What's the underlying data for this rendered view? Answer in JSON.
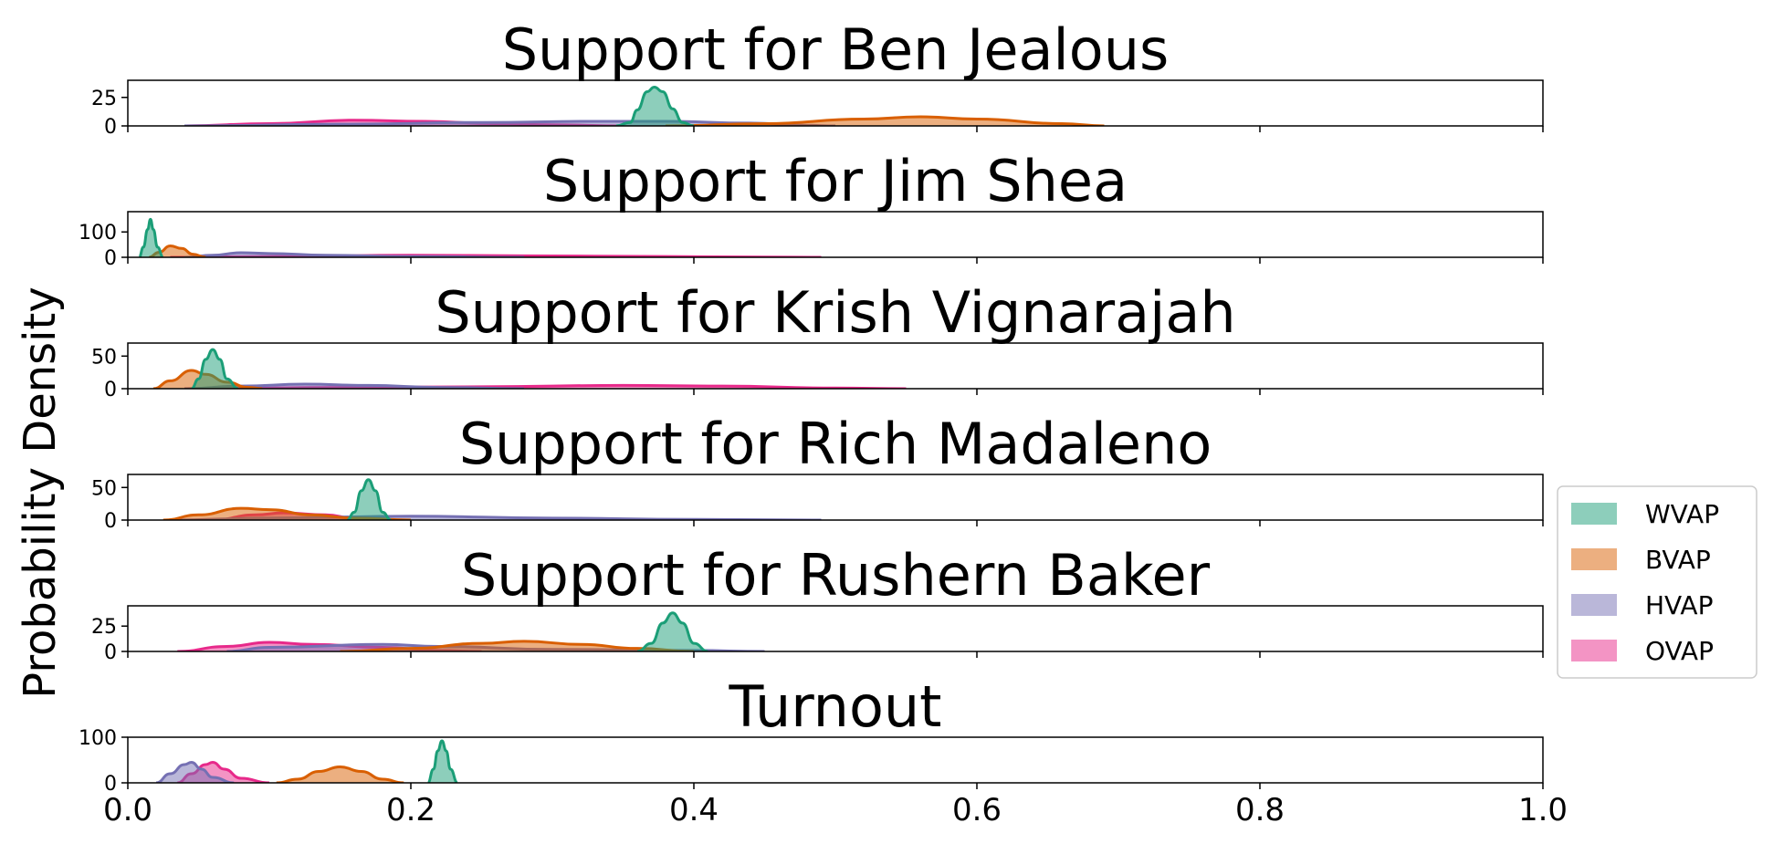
{
  "chart_data": {
    "type": "area",
    "ylabel": "Probability Density",
    "xlim": [
      0.0,
      1.0
    ],
    "x_ticks": [
      "0.0",
      "0.2",
      "0.4",
      "0.6",
      "0.8",
      "1.0"
    ],
    "legend": {
      "placement": "center-right",
      "entries": [
        "WVAP",
        "BVAP",
        "HVAP",
        "OVAP"
      ]
    },
    "colors": {
      "WVAP": "#1b9e77",
      "BVAP": "#d95f02",
      "HVAP": "#7570b3",
      "OVAP": "#e7298a"
    },
    "panels": [
      {
        "title": "Support for Ben Jealous",
        "ylim": [
          0,
          40
        ],
        "y_ticks": [
          {
            "v": 0,
            "label": "0"
          },
          {
            "v": 25,
            "label": "25"
          }
        ],
        "series": [
          {
            "name": "WVAP",
            "points": [
              [
                0.345,
                0
              ],
              [
                0.355,
                3
              ],
              [
                0.36,
                14
              ],
              [
                0.367,
                30
              ],
              [
                0.372,
                34
              ],
              [
                0.378,
                30
              ],
              [
                0.385,
                15
              ],
              [
                0.392,
                3
              ],
              [
                0.4,
                0
              ]
            ]
          },
          {
            "name": "BVAP",
            "points": [
              [
                0.38,
                0
              ],
              [
                0.45,
                2
              ],
              [
                0.52,
                6
              ],
              [
                0.56,
                8
              ],
              [
                0.6,
                6
              ],
              [
                0.66,
                2
              ],
              [
                0.69,
                0
              ]
            ]
          },
          {
            "name": "HVAP",
            "points": [
              [
                0.04,
                0
              ],
              [
                0.15,
                1.5
              ],
              [
                0.25,
                3
              ],
              [
                0.33,
                4
              ],
              [
                0.38,
                4
              ],
              [
                0.44,
                2.5
              ],
              [
                0.48,
                0.5
              ],
              [
                0.5,
                0
              ]
            ]
          },
          {
            "name": "OVAP",
            "points": [
              [
                0.04,
                0
              ],
              [
                0.1,
                2
              ],
              [
                0.16,
                5
              ],
              [
                0.21,
                4
              ],
              [
                0.26,
                2
              ],
              [
                0.3,
                1
              ],
              [
                0.35,
                0
              ]
            ]
          }
        ]
      },
      {
        "title": "Support for Jim Shea",
        "ylim": [
          0,
          180
        ],
        "y_ticks": [
          {
            "v": 0,
            "label": "0"
          },
          {
            "v": 100,
            "label": "100"
          }
        ],
        "series": [
          {
            "name": "WVAP",
            "points": [
              [
                0.008,
                0
              ],
              [
                0.011,
                40
              ],
              [
                0.014,
                110
              ],
              [
                0.016,
                150
              ],
              [
                0.018,
                110
              ],
              [
                0.021,
                40
              ],
              [
                0.025,
                0
              ]
            ]
          },
          {
            "name": "BVAP",
            "points": [
              [
                0.015,
                0
              ],
              [
                0.022,
                20
              ],
              [
                0.03,
                45
              ],
              [
                0.038,
                35
              ],
              [
                0.046,
                12
              ],
              [
                0.055,
                0
              ]
            ]
          },
          {
            "name": "HVAP",
            "points": [
              [
                0.04,
                0
              ],
              [
                0.06,
                8
              ],
              [
                0.08,
                18
              ],
              [
                0.1,
                15
              ],
              [
                0.14,
                8
              ],
              [
                0.2,
                3
              ],
              [
                0.28,
                0
              ]
            ]
          },
          {
            "name": "OVAP",
            "points": [
              [
                0.03,
                0
              ],
              [
                0.1,
                3
              ],
              [
                0.2,
                8
              ],
              [
                0.28,
                6
              ],
              [
                0.38,
                3
              ],
              [
                0.45,
                1
              ],
              [
                0.49,
                0
              ]
            ]
          }
        ]
      },
      {
        "title": "Support for Krish Vignarajah",
        "ylim": [
          0,
          70
        ],
        "y_ticks": [
          {
            "v": 0,
            "label": "0"
          },
          {
            "v": 50,
            "label": "50"
          }
        ],
        "series": [
          {
            "name": "WVAP",
            "points": [
              [
                0.045,
                0
              ],
              [
                0.05,
                15
              ],
              [
                0.055,
                45
              ],
              [
                0.06,
                60
              ],
              [
                0.065,
                45
              ],
              [
                0.07,
                15
              ],
              [
                0.078,
                0
              ]
            ]
          },
          {
            "name": "BVAP",
            "points": [
              [
                0.018,
                0
              ],
              [
                0.03,
                12
              ],
              [
                0.045,
                28
              ],
              [
                0.055,
                22
              ],
              [
                0.07,
                10
              ],
              [
                0.085,
                2
              ],
              [
                0.095,
                0
              ]
            ]
          },
          {
            "name": "HVAP",
            "points": [
              [
                0.04,
                0
              ],
              [
                0.08,
                4
              ],
              [
                0.125,
                7
              ],
              [
                0.17,
                5
              ],
              [
                0.22,
                2
              ],
              [
                0.28,
                0
              ]
            ]
          },
          {
            "name": "OVAP",
            "points": [
              [
                0.05,
                0
              ],
              [
                0.15,
                2
              ],
              [
                0.25,
                3
              ],
              [
                0.35,
                5
              ],
              [
                0.42,
                4
              ],
              [
                0.5,
                1
              ],
              [
                0.55,
                0
              ]
            ]
          }
        ]
      },
      {
        "title": "Support for Rich Madaleno",
        "ylim": [
          0,
          70
        ],
        "y_ticks": [
          {
            "v": 0,
            "label": "0"
          },
          {
            "v": 50,
            "label": "50"
          }
        ],
        "series": [
          {
            "name": "WVAP",
            "points": [
              [
                0.155,
                0
              ],
              [
                0.16,
                12
              ],
              [
                0.165,
                45
              ],
              [
                0.17,
                62
              ],
              [
                0.175,
                45
              ],
              [
                0.18,
                12
              ],
              [
                0.186,
                0
              ]
            ]
          },
          {
            "name": "BVAP",
            "points": [
              [
                0.025,
                0
              ],
              [
                0.05,
                8
              ],
              [
                0.08,
                18
              ],
              [
                0.1,
                16
              ],
              [
                0.13,
                8
              ],
              [
                0.16,
                3
              ],
              [
                0.2,
                0
              ]
            ]
          },
          {
            "name": "HVAP",
            "points": [
              [
                0.03,
                0
              ],
              [
                0.1,
                3
              ],
              [
                0.2,
                6
              ],
              [
                0.3,
                3
              ],
              [
                0.4,
                1
              ],
              [
                0.49,
                0
              ]
            ]
          },
          {
            "name": "OVAP",
            "points": [
              [
                0.06,
                0
              ],
              [
                0.09,
                8
              ],
              [
                0.11,
                11
              ],
              [
                0.14,
                8
              ],
              [
                0.16,
                3
              ],
              [
                0.19,
                0
              ]
            ]
          }
        ]
      },
      {
        "title": "Support for Rushern Baker",
        "ylim": [
          0,
          45
        ],
        "y_ticks": [
          {
            "v": 0,
            "label": "0"
          },
          {
            "v": 25,
            "label": "25"
          }
        ],
        "series": [
          {
            "name": "WVAP",
            "points": [
              [
                0.36,
                0
              ],
              [
                0.37,
                8
              ],
              [
                0.378,
                28
              ],
              [
                0.385,
                38
              ],
              [
                0.392,
                28
              ],
              [
                0.4,
                8
              ],
              [
                0.41,
                0
              ]
            ]
          },
          {
            "name": "BVAP",
            "points": [
              [
                0.15,
                0
              ],
              [
                0.2,
                3
              ],
              [
                0.25,
                8
              ],
              [
                0.28,
                10
              ],
              [
                0.32,
                7
              ],
              [
                0.36,
                3
              ],
              [
                0.4,
                0
              ]
            ]
          },
          {
            "name": "HVAP",
            "points": [
              [
                0.07,
                0
              ],
              [
                0.1,
                4
              ],
              [
                0.18,
                7
              ],
              [
                0.22,
                5
              ],
              [
                0.3,
                2
              ],
              [
                0.4,
                1
              ],
              [
                0.45,
                0
              ]
            ]
          },
          {
            "name": "OVAP",
            "points": [
              [
                0.035,
                0
              ],
              [
                0.07,
                5
              ],
              [
                0.1,
                9
              ],
              [
                0.13,
                7
              ],
              [
                0.18,
                4
              ],
              [
                0.22,
                1
              ],
              [
                0.25,
                0
              ]
            ]
          }
        ]
      },
      {
        "title": "Turnout",
        "ylim": [
          0,
          100
        ],
        "y_ticks": [
          {
            "v": 0,
            "label": "0"
          },
          {
            "v": 100,
            "label": "100"
          }
        ],
        "series": [
          {
            "name": "WVAP",
            "points": [
              [
                0.212,
                0
              ],
              [
                0.216,
                30
              ],
              [
                0.219,
                70
              ],
              [
                0.222,
                92
              ],
              [
                0.225,
                70
              ],
              [
                0.228,
                30
              ],
              [
                0.233,
                0
              ]
            ]
          },
          {
            "name": "BVAP",
            "points": [
              [
                0.105,
                0
              ],
              [
                0.12,
                8
              ],
              [
                0.135,
                25
              ],
              [
                0.15,
                35
              ],
              [
                0.165,
                25
              ],
              [
                0.18,
                8
              ],
              [
                0.195,
                0
              ]
            ]
          },
          {
            "name": "HVAP",
            "points": [
              [
                0.02,
                0
              ],
              [
                0.03,
                20
              ],
              [
                0.04,
                40
              ],
              [
                0.045,
                45
              ],
              [
                0.052,
                30
              ],
              [
                0.06,
                12
              ],
              [
                0.075,
                0
              ]
            ]
          },
          {
            "name": "OVAP",
            "points": [
              [
                0.035,
                0
              ],
              [
                0.045,
                20
              ],
              [
                0.055,
                40
              ],
              [
                0.06,
                45
              ],
              [
                0.068,
                30
              ],
              [
                0.08,
                10
              ],
              [
                0.1,
                0
              ]
            ]
          }
        ]
      }
    ]
  }
}
